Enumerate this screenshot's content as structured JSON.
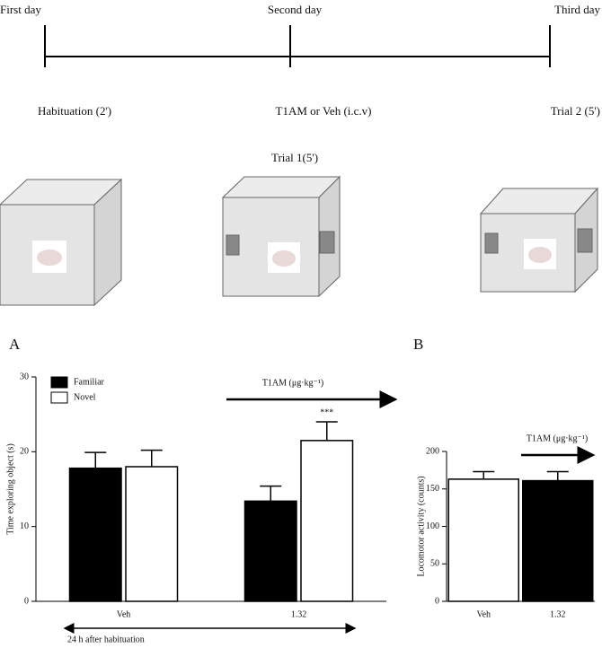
{
  "timeline": {
    "days": [
      "First day",
      "Second day",
      "Third day"
    ],
    "events": [
      "Habituation (2')",
      "T1AM or Veh (i.c.v)",
      "Trial 2 (5')"
    ],
    "trial1": "Trial 1(5')"
  },
  "chart_data": [
    {
      "type": "bar",
      "panel": "A",
      "y_label": "Time exploring object (s)",
      "categories": [
        "Veh",
        "1.32"
      ],
      "series": [
        {
          "name": "Familiar",
          "color": "#000000",
          "values": [
            17.8,
            13.4
          ],
          "errors": [
            2.1,
            2.0
          ]
        },
        {
          "name": "Novel",
          "color": "#ffffff",
          "values": [
            18.0,
            21.5
          ],
          "errors": [
            2.2,
            2.5
          ]
        }
      ],
      "ylim": [
        0,
        30
      ],
      "yticks": [
        0,
        10,
        20,
        30
      ],
      "arrow_label": "T1AM (μg·kg⁻¹)",
      "significance": "***",
      "bracket_label": "24 h after habituation"
    },
    {
      "type": "bar",
      "panel": "B",
      "y_label": "Locomotor activity (counts)",
      "categories": [
        "Veh",
        "1.32"
      ],
      "values": [
        163,
        161
      ],
      "errors": [
        10,
        12
      ],
      "colors": [
        "#ffffff",
        "#000000"
      ],
      "ylim": [
        0,
        200
      ],
      "yticks": [
        0,
        50,
        100,
        150,
        200
      ],
      "arrow_label": "T1AM (μg·kg⁻¹)"
    }
  ]
}
